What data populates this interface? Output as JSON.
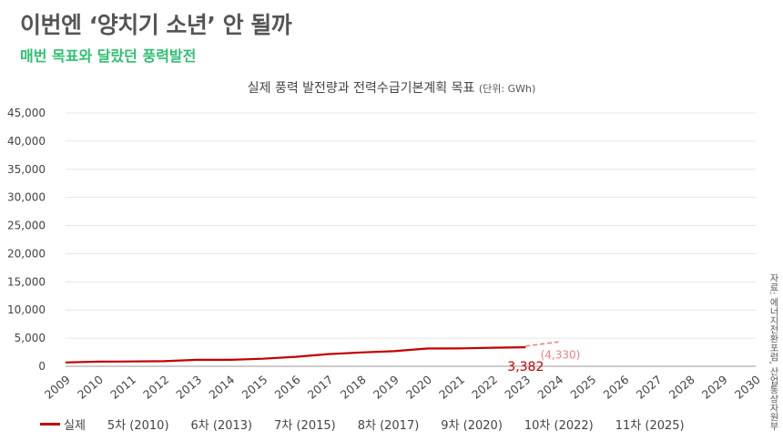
{
  "headline": "이번엔 ‘양치기 소년’ 안 될까",
  "subheadline": "매번 목표와 달랐던 풍력발전",
  "source": "자료: 에너지전환포럼, 산업통상자원부",
  "chart_data": {
    "type": "line",
    "title": "실제 풍력 발전량과 전력수급기본계획 목표",
    "unit_note": "(단위: GWh)",
    "x": [
      "2009",
      "2010",
      "2011",
      "2012",
      "2013",
      "2014",
      "2015",
      "2016",
      "2017",
      "2018",
      "2019",
      "2020",
      "2021",
      "2022",
      "2023",
      "2024",
      "2025",
      "2026",
      "2027",
      "2028",
      "2029",
      "2030"
    ],
    "ylim": [
      0,
      45000
    ],
    "y_ticks": [
      "0",
      "5,000",
      "10,000",
      "15,000",
      "20,000",
      "25,000",
      "30,000",
      "35,000",
      "40,000",
      "45,000"
    ],
    "grid": true,
    "series": [
      {
        "name": "실제",
        "color": "#c00000",
        "values": [
          680,
          820,
          860,
          910,
          1150,
          1150,
          1350,
          1680,
          2170,
          2460,
          2680,
          3150,
          3180,
          3300,
          3382,
          null,
          null,
          null,
          null,
          null,
          null,
          null
        ]
      }
    ],
    "target_series": {
      "color": "#f08080",
      "x": [
        "2023",
        "2024"
      ],
      "values": [
        3600,
        4330
      ]
    },
    "annotations": [
      {
        "text": "3,382",
        "x": "2023",
        "y": 3382,
        "color": "#c00000"
      },
      {
        "text": "(4,330)",
        "x": "2024",
        "y": 4330,
        "color": "#f08080"
      }
    ],
    "legend": {
      "position": "bottom",
      "entries": [
        "실제",
        "5차 (2010)",
        "6차 (2013)",
        "7차 (2015)",
        "8차 (2017)",
        "9차 (2020)",
        "10차 (2022)",
        "11차 (2025)"
      ]
    }
  }
}
